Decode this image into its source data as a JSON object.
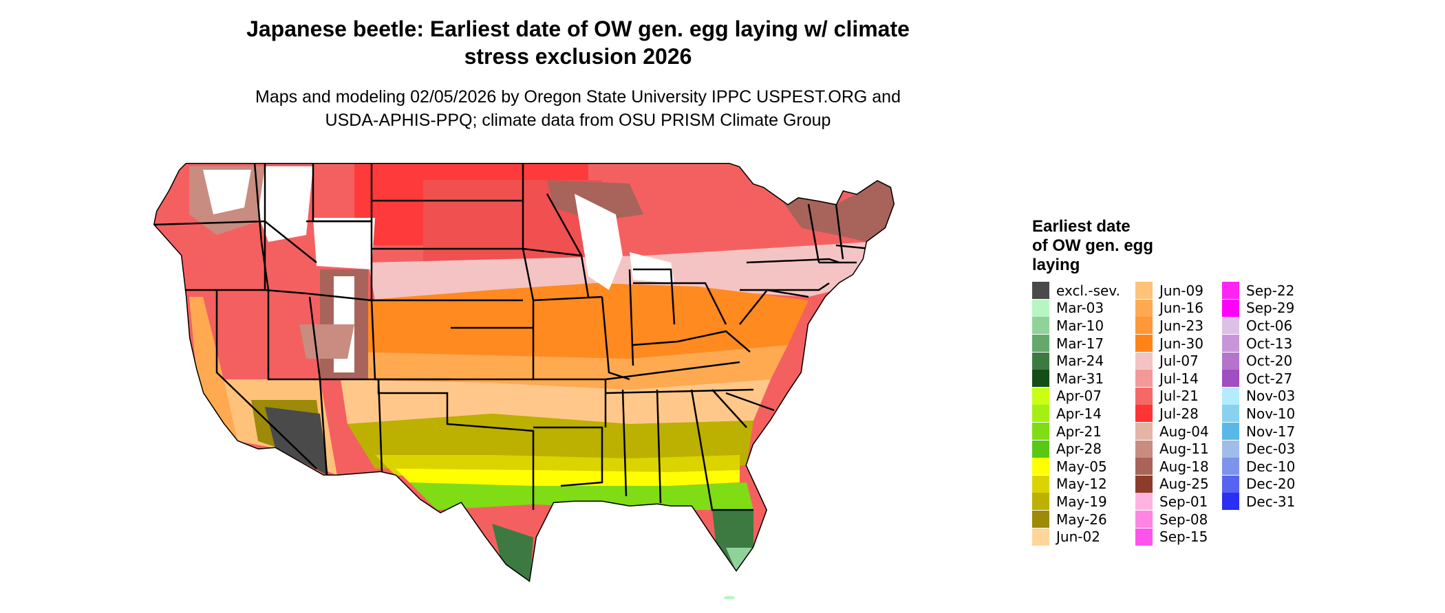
{
  "title_line1": "Japanese beetle: Earliest date of OW gen. egg laying w/ climate",
  "title_line2": "stress exclusion 2026",
  "subtitle_line1": "Maps and modeling 02/05/2026 by Oregon State University IPPC USPEST.ORG and",
  "subtitle_line2": "USDA-APHIS-PPQ; climate data from OSU PRISM Climate Group",
  "legend": {
    "title_line1": "Earliest date",
    "title_line2": "of OW gen. egg",
    "title_line3": "laying",
    "items": [
      {
        "label": "excl.-sev.",
        "color": "#4a4a4a"
      },
      {
        "label": "Mar-03",
        "color": "#b8f5c4"
      },
      {
        "label": "Mar-10",
        "color": "#8fd39a"
      },
      {
        "label": "Mar-17",
        "color": "#64a86c"
      },
      {
        "label": "Mar-24",
        "color": "#3c7a42"
      },
      {
        "label": "Mar-31",
        "color": "#154d18"
      },
      {
        "label": "Apr-07",
        "color": "#c8ff14"
      },
      {
        "label": "Apr-14",
        "color": "#a6ef14"
      },
      {
        "label": "Apr-21",
        "color": "#80dc14"
      },
      {
        "label": "Apr-28",
        "color": "#58c814"
      },
      {
        "label": "May-05",
        "color": "#ffff00"
      },
      {
        "label": "May-12",
        "color": "#dcd400"
      },
      {
        "label": "May-19",
        "color": "#bcb000"
      },
      {
        "label": "May-26",
        "color": "#9c8a08"
      },
      {
        "label": "Jun-02",
        "color": "#ffd59a"
      },
      {
        "label": "Jun-09",
        "color": "#ffc27a"
      },
      {
        "label": "Jun-16",
        "color": "#ffaa50"
      },
      {
        "label": "Jun-23",
        "color": "#ff9838"
      },
      {
        "label": "Jun-30",
        "color": "#ff8418"
      },
      {
        "label": "Jul-07",
        "color": "#f4c4c4"
      },
      {
        "label": "Jul-14",
        "color": "#f49898"
      },
      {
        "label": "Jul-21",
        "color": "#f46868"
      },
      {
        "label": "Jul-28",
        "color": "#ff3434"
      },
      {
        "label": "Aug-04",
        "color": "#e4b4a4"
      },
      {
        "label": "Aug-11",
        "color": "#c88c80"
      },
      {
        "label": "Aug-18",
        "color": "#a8645a"
      },
      {
        "label": "Aug-25",
        "color": "#8c3c2a"
      },
      {
        "label": "Sep-01",
        "color": "#ffb4e0"
      },
      {
        "label": "Sep-08",
        "color": "#ff84e4"
      },
      {
        "label": "Sep-15",
        "color": "#ff54ec"
      },
      {
        "label": "Sep-22",
        "color": "#ff24f4"
      },
      {
        "label": "Sep-29",
        "color": "#ff00ff"
      },
      {
        "label": "Oct-06",
        "color": "#ddc0e6"
      },
      {
        "label": "Oct-13",
        "color": "#c896d8"
      },
      {
        "label": "Oct-20",
        "color": "#b474cc"
      },
      {
        "label": "Oct-27",
        "color": "#a04ec0"
      },
      {
        "label": "Nov-03",
        "color": "#b4ecff"
      },
      {
        "label": "Nov-10",
        "color": "#88d2f0"
      },
      {
        "label": "Nov-17",
        "color": "#58b8e8"
      },
      {
        "label": "Dec-03",
        "color": "#a0bce8"
      },
      {
        "label": "Dec-10",
        "color": "#7c94ec"
      },
      {
        "label": "Dec-20",
        "color": "#5664f0"
      },
      {
        "label": "Dec-31",
        "color": "#2830f4"
      }
    ]
  }
}
